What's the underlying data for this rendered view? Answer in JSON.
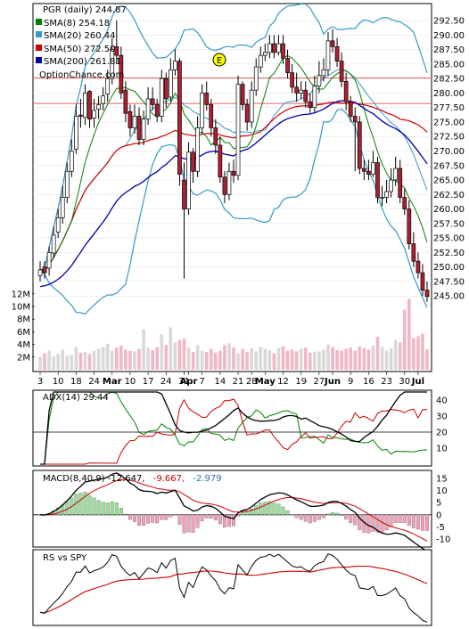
{
  "chart_data": [
    {
      "type": "candlestick",
      "panel": "price",
      "title": "PGR (daily) 244.87",
      "legend": [
        {
          "label": "SMA(8) 254.18",
          "color": "#008000"
        },
        {
          "label": "SMA(20) 260.44",
          "color": "#3399cc"
        },
        {
          "label": "SMA(50) 272.50",
          "color": "#cc0000"
        },
        {
          "label": "SMA(200) 261.81",
          "color": "#0000aa"
        }
      ],
      "source_label": "OptionChance.com",
      "marker_label": "E",
      "ylim": [
        243.8,
        294.2
      ],
      "y_ticks": [
        "292.50",
        "290.00",
        "287.50",
        "285.00",
        "282.50",
        "280.00",
        "277.50",
        "275.00",
        "272.50",
        "270.00",
        "267.50",
        "265.00",
        "262.50",
        "260.00",
        "257.50",
        "255.00",
        "252.50",
        "250.00",
        "247.50",
        "245.00"
      ],
      "horizontal_lines": [
        282.6,
        278.2
      ],
      "volume_ticks": [
        "12M",
        "10M",
        "8M",
        "6M",
        "4M",
        "2M"
      ],
      "x_ticks": [
        "3",
        "10",
        "18",
        "24",
        "Mar",
        "10",
        "17",
        "24",
        "31",
        "Apr",
        "7",
        "14",
        "21",
        "28",
        "May",
        "12",
        "19",
        "27",
        "Jun",
        "9",
        "16",
        "23",
        "30",
        "Jul"
      ],
      "candles": {
        "open": [
          248.5,
          250.0,
          249.8,
          252.4,
          256.0,
          258.5,
          262.0,
          266.5,
          270.3,
          276.2,
          275.8,
          280.3,
          275.7,
          277.2,
          278.2,
          279.8,
          282.5,
          288.0,
          286.5,
          280.5,
          276.8,
          274.0,
          276.0,
          272.0,
          275.5,
          279.0,
          278.0,
          276.0,
          282.5,
          279.3,
          284.0,
          285.5,
          265.0,
          260.0,
          269.8,
          266.5,
          274.0,
          280.0,
          278.0,
          274.0,
          271.0,
          265.5,
          262.5,
          266.5,
          265.8,
          281.5,
          278.0,
          275.0,
          280.5,
          284.5,
          286.5,
          287.0,
          288.5,
          287.0,
          288.5,
          286.0,
          283.5,
          281.0,
          280.0,
          280.5,
          278.5,
          277.5,
          281.2,
          283.0,
          284.0,
          289.0,
          288.0,
          285.5,
          282.0,
          278.5,
          276.0,
          275.0,
          267.0,
          266.5,
          266.0,
          268.0,
          262.0,
          262.0,
          263.0,
          265.0,
          267.0,
          262.0,
          260.0,
          254.0,
          251.0,
          249.0,
          246.0
        ],
        "close": [
          249.5,
          249.0,
          252.5,
          255.5,
          258.5,
          262.0,
          266.5,
          270.0,
          276.0,
          276.0,
          280.0,
          275.5,
          277.0,
          278.0,
          279.5,
          282.5,
          287.5,
          286.5,
          280.0,
          276.5,
          274.0,
          276.0,
          272.0,
          275.5,
          279.0,
          278.0,
          276.0,
          282.5,
          279.0,
          284.0,
          285.5,
          266.0,
          260.0,
          269.8,
          266.5,
          274.0,
          280.0,
          278.0,
          274.0,
          271.0,
          265.5,
          262.5,
          266.5,
          265.8,
          281.5,
          278.0,
          275.0,
          280.5,
          284.5,
          286.5,
          287.0,
          288.5,
          287.0,
          288.5,
          286.0,
          283.5,
          281.0,
          280.0,
          280.5,
          278.5,
          277.5,
          281.2,
          283.0,
          284.0,
          289.0,
          288.0,
          285.5,
          282.0,
          278.5,
          276.0,
          275.0,
          267.0,
          266.5,
          266.0,
          268.0,
          262.0,
          262.0,
          263.0,
          265.0,
          267.0,
          262.0,
          260.0,
          254.0,
          251.0,
          249.0,
          246.0,
          244.9
        ],
        "high": [
          251.0,
          251.0,
          253.5,
          257.0,
          260.0,
          264.0,
          268.0,
          272.0,
          278.0,
          279.0,
          281.5,
          280.5,
          279.0,
          279.5,
          281.0,
          284.0,
          289.5,
          292.5,
          288.0,
          282.0,
          278.0,
          278.0,
          277.5,
          277.0,
          281.0,
          281.0,
          279.0,
          284.0,
          283.5,
          286.0,
          287.5,
          286.0,
          268.0,
          271.5,
          270.5,
          276.0,
          281.5,
          282.0,
          279.0,
          275.5,
          272.5,
          266.5,
          268.0,
          268.5,
          283.0,
          282.0,
          279.0,
          282.0,
          286.0,
          288.0,
          288.5,
          290.0,
          290.0,
          290.0,
          290.0,
          287.5,
          285.0,
          283.5,
          282.0,
          282.0,
          280.0,
          283.0,
          285.5,
          286.0,
          290.5,
          291.0,
          289.5,
          287.0,
          283.5,
          279.5,
          277.5,
          276.0,
          268.5,
          268.5,
          270.0,
          269.0,
          264.0,
          265.0,
          267.0,
          269.0,
          268.5,
          263.5,
          261.5,
          256.0,
          252.5,
          250.5,
          247.5
        ],
        "low": [
          247.5,
          248.0,
          248.5,
          251.5,
          255.0,
          257.5,
          261.0,
          265.5,
          269.5,
          274.0,
          274.5,
          274.0,
          274.0,
          275.5,
          277.0,
          278.5,
          281.5,
          285.0,
          279.0,
          275.0,
          272.5,
          273.0,
          271.0,
          271.0,
          274.5,
          277.0,
          275.0,
          275.0,
          277.5,
          278.5,
          283.0,
          264.0,
          248.0,
          259.0,
          264.5,
          265.5,
          273.0,
          277.0,
          272.5,
          269.5,
          264.5,
          261.0,
          261.5,
          264.5,
          265.0,
          277.0,
          273.5,
          274.0,
          279.5,
          283.5,
          285.5,
          286.0,
          286.0,
          286.5,
          285.0,
          282.5,
          280.0,
          278.5,
          279.0,
          277.5,
          276.5,
          276.5,
          280.0,
          282.0,
          283.0,
          287.0,
          284.5,
          281.0,
          277.0,
          275.0,
          266.5,
          266.0,
          265.0,
          265.0,
          265.5,
          261.0,
          260.5,
          261.0,
          262.0,
          264.0,
          261.0,
          259.0,
          253.0,
          250.0,
          248.0,
          245.0,
          244.0
        ]
      },
      "volume": [
        2.0,
        2.6,
        3.0,
        2.1,
        2.5,
        3.2,
        2.2,
        2.4,
        3.6,
        2.7,
        2.8,
        2.5,
        3.0,
        3.3,
        3.6,
        4.1,
        3.0,
        3.5,
        3.8,
        3.2,
        3.0,
        2.9,
        3.3,
        6.4,
        3.5,
        3.1,
        3.6,
        5.6,
        3.9,
        6.7,
        4.3,
        4.7,
        4.9,
        3.5,
        2.8,
        3.9,
        3.0,
        2.8,
        3.3,
        2.7,
        3.0,
        3.9,
        4.2,
        3.5,
        2.6,
        3.3,
        2.8,
        3.4,
        2.9,
        3.6,
        3.3,
        3.1,
        2.6,
        3.4,
        3.7,
        3.0,
        3.2,
        2.9,
        3.3,
        3.5,
        2.7,
        2.8,
        2.9,
        3.2,
        4.0,
        3.6,
        3.1,
        3.0,
        3.3,
        3.5,
        3.0,
        3.7,
        3.4,
        3.2,
        3.8,
        5.2,
        3.6,
        3.0,
        3.4,
        4.7,
        4.3,
        9.5,
        11.2,
        5.0,
        5.3,
        5.7,
        3.2
      ]
    },
    {
      "type": "line",
      "panel": "adx",
      "label": "ADX(14) 29.44",
      "ylim": [
        0,
        45
      ],
      "y_ticks": [
        "40",
        "30",
        "20",
        "10"
      ],
      "h_line": 20
    },
    {
      "type": "line",
      "panel": "macd",
      "label": "MACD(8,40,9) -12.647,",
      "signal_label": "-9.667,",
      "hist_label": "-2.979",
      "ylim": [
        -12.5,
        17.5
      ],
      "y_ticks": [
        "15",
        "10",
        "5",
        "0",
        "-5",
        "-10"
      ]
    },
    {
      "type": "line",
      "panel": "rs",
      "label": "RS vs SPY"
    }
  ]
}
